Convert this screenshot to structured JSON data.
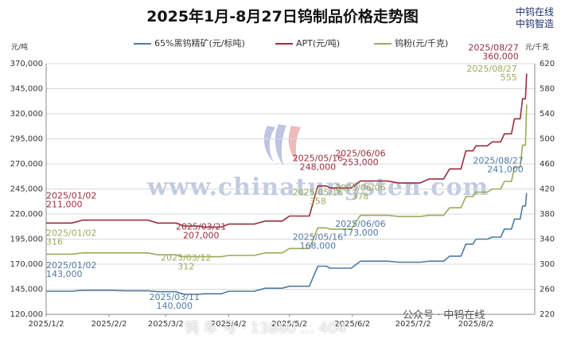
{
  "title": "2025年1月-8月27日钨制品价格走势图",
  "brand": {
    "line1": "中钨在线",
    "line2": "中钨智造"
  },
  "watermark": "www.chinatungsten.com",
  "footer_mark": "钨 年 号 · 13860 ... 404",
  "wechat": "公众号 · 中钨在线",
  "colors": {
    "concentrate": "#4f7aa3",
    "apt": "#9b2d3c",
    "powder": "#9bab5a",
    "grid": "#d9d9d9"
  },
  "chart_data": {
    "type": "line",
    "title": "2025年1月-8月27日钨制品价格走势图",
    "left_unit": "元/吨",
    "right_unit": "元/千克",
    "y_left": {
      "range": [
        120000,
        370000
      ],
      "ticks": [
        "120,000",
        "145,000",
        "170,000",
        "195,000",
        "220,000",
        "245,000",
        "270,000",
        "295,000",
        "320,000",
        "345,000",
        "370,000"
      ]
    },
    "y_right": {
      "range": [
        220,
        620
      ],
      "ticks": [
        "220",
        "260",
        "300",
        "340",
        "380",
        "420",
        "460",
        "500",
        "540",
        "580",
        "620"
      ]
    },
    "x_ticks": [
      "2025/1/2",
      "2025/2/2",
      "2025/3/2",
      "2025/4/2",
      "2025/5/2",
      "2025/6/2",
      "2025/7/2",
      "2025/8/2"
    ],
    "x_range": [
      "2025-01-02",
      "2025-08-31"
    ],
    "grid": "horizontal",
    "legend_position": "top",
    "series": [
      {
        "name": "65%黑钨精矿(元/标吨)",
        "axis": "left",
        "color": "#4f7aa3",
        "points": [
          [
            "2025-01-02",
            143000
          ],
          [
            "2025-01-20",
            144000
          ],
          [
            "2025-02-10",
            143500
          ],
          [
            "2025-02-26",
            142500
          ],
          [
            "2025-03-11",
            140000
          ],
          [
            "2025-03-21",
            140500
          ],
          [
            "2025-04-02",
            143000
          ],
          [
            "2025-04-20",
            146000
          ],
          [
            "2025-05-02",
            148000
          ],
          [
            "2025-05-16",
            168000
          ],
          [
            "2025-05-22",
            166000
          ],
          [
            "2025-06-06",
            173000
          ],
          [
            "2025-06-25",
            172000
          ],
          [
            "2025-07-10",
            173000
          ],
          [
            "2025-07-20",
            178000
          ],
          [
            "2025-07-28",
            190000
          ],
          [
            "2025-08-02",
            195000
          ],
          [
            "2025-08-10",
            197000
          ],
          [
            "2025-08-16",
            205000
          ],
          [
            "2025-08-21",
            215000
          ],
          [
            "2025-08-25",
            228000
          ],
          [
            "2025-08-27",
            241000
          ]
        ]
      },
      {
        "name": "APT(元/吨)",
        "axis": "left",
        "color": "#9b2d3c",
        "points": [
          [
            "2025-01-02",
            211000
          ],
          [
            "2025-01-20",
            214000
          ],
          [
            "2025-02-10",
            214000
          ],
          [
            "2025-02-26",
            211000
          ],
          [
            "2025-03-11",
            208000
          ],
          [
            "2025-03-21",
            207000
          ],
          [
            "2025-04-02",
            210000
          ],
          [
            "2025-04-20",
            213000
          ],
          [
            "2025-05-02",
            218000
          ],
          [
            "2025-05-16",
            248000
          ],
          [
            "2025-05-22",
            246000
          ],
          [
            "2025-06-06",
            253000
          ],
          [
            "2025-06-25",
            251000
          ],
          [
            "2025-07-10",
            255000
          ],
          [
            "2025-07-20",
            265000
          ],
          [
            "2025-07-28",
            283000
          ],
          [
            "2025-08-02",
            288000
          ],
          [
            "2025-08-10",
            292000
          ],
          [
            "2025-08-16",
            300000
          ],
          [
            "2025-08-21",
            315000
          ],
          [
            "2025-08-25",
            335000
          ],
          [
            "2025-08-27",
            360000
          ]
        ]
      },
      {
        "name": "钨粉(元/千克)",
        "axis": "right",
        "color": "#9bab5a",
        "points": [
          [
            "2025-01-02",
            316
          ],
          [
            "2025-01-20",
            318
          ],
          [
            "2025-02-10",
            318
          ],
          [
            "2025-02-26",
            315
          ],
          [
            "2025-03-11",
            312
          ],
          [
            "2025-03-21",
            312
          ],
          [
            "2025-04-02",
            314
          ],
          [
            "2025-04-20",
            318
          ],
          [
            "2025-05-02",
            325
          ],
          [
            "2025-05-16",
            358
          ],
          [
            "2025-05-22",
            356
          ],
          [
            "2025-06-06",
            378
          ],
          [
            "2025-06-25",
            376
          ],
          [
            "2025-07-10",
            378
          ],
          [
            "2025-07-20",
            390
          ],
          [
            "2025-07-28",
            408
          ],
          [
            "2025-08-02",
            415
          ],
          [
            "2025-08-10",
            420
          ],
          [
            "2025-08-16",
            432
          ],
          [
            "2025-08-21",
            455
          ],
          [
            "2025-08-25",
            490
          ],
          [
            "2025-08-27",
            555
          ]
        ]
      }
    ],
    "annotations": [
      {
        "series": 1,
        "date": "2025/01/02",
        "value": "211,000",
        "at": [
          "2025-01-02",
          211000
        ]
      },
      {
        "series": 1,
        "date": "2025/03/21",
        "value": "207,000",
        "at": [
          "2025-03-21",
          207000
        ]
      },
      {
        "series": 1,
        "date": "2025/05/16",
        "value": "248,000",
        "at": [
          "2025-05-16",
          248000
        ]
      },
      {
        "series": 1,
        "date": "2025/06/06",
        "value": "253,000",
        "at": [
          "2025-06-06",
          253000
        ]
      },
      {
        "series": 1,
        "date": "2025/08/27",
        "value": "360,000",
        "at": [
          "2025-08-27",
          360000
        ]
      },
      {
        "series": 2,
        "date": "2025/01/02",
        "value": "316",
        "at": [
          "2025-01-02",
          316
        ]
      },
      {
        "series": 2,
        "date": "2025/03/12",
        "value": "312",
        "at": [
          "2025-03-12",
          312
        ]
      },
      {
        "series": 2,
        "date": "2025/05/16",
        "value": "358",
        "at": [
          "2025-05-16",
          358
        ]
      },
      {
        "series": 2,
        "date": "2025/06/06",
        "value": "378",
        "at": [
          "2025-06-06",
          378
        ]
      },
      {
        "series": 2,
        "date": "2025/08/27",
        "value": "555",
        "at": [
          "2025-08-27",
          555
        ]
      },
      {
        "series": 0,
        "date": "2025/01/02",
        "value": "143,000",
        "at": [
          "2025-01-02",
          143000
        ]
      },
      {
        "series": 0,
        "date": "2025/03/11",
        "value": "140,000",
        "at": [
          "2025-03-11",
          140000
        ]
      },
      {
        "series": 0,
        "date": "2025/05/16",
        "value": "168,000",
        "at": [
          "2025-05-16",
          168000
        ]
      },
      {
        "series": 0,
        "date": "2025/06/06",
        "value": "173,000",
        "at": [
          "2025-06-06",
          173000
        ]
      },
      {
        "series": 0,
        "date": "2025/08/27",
        "value": "241,000",
        "at": [
          "2025-08-27",
          241000
        ]
      }
    ]
  }
}
